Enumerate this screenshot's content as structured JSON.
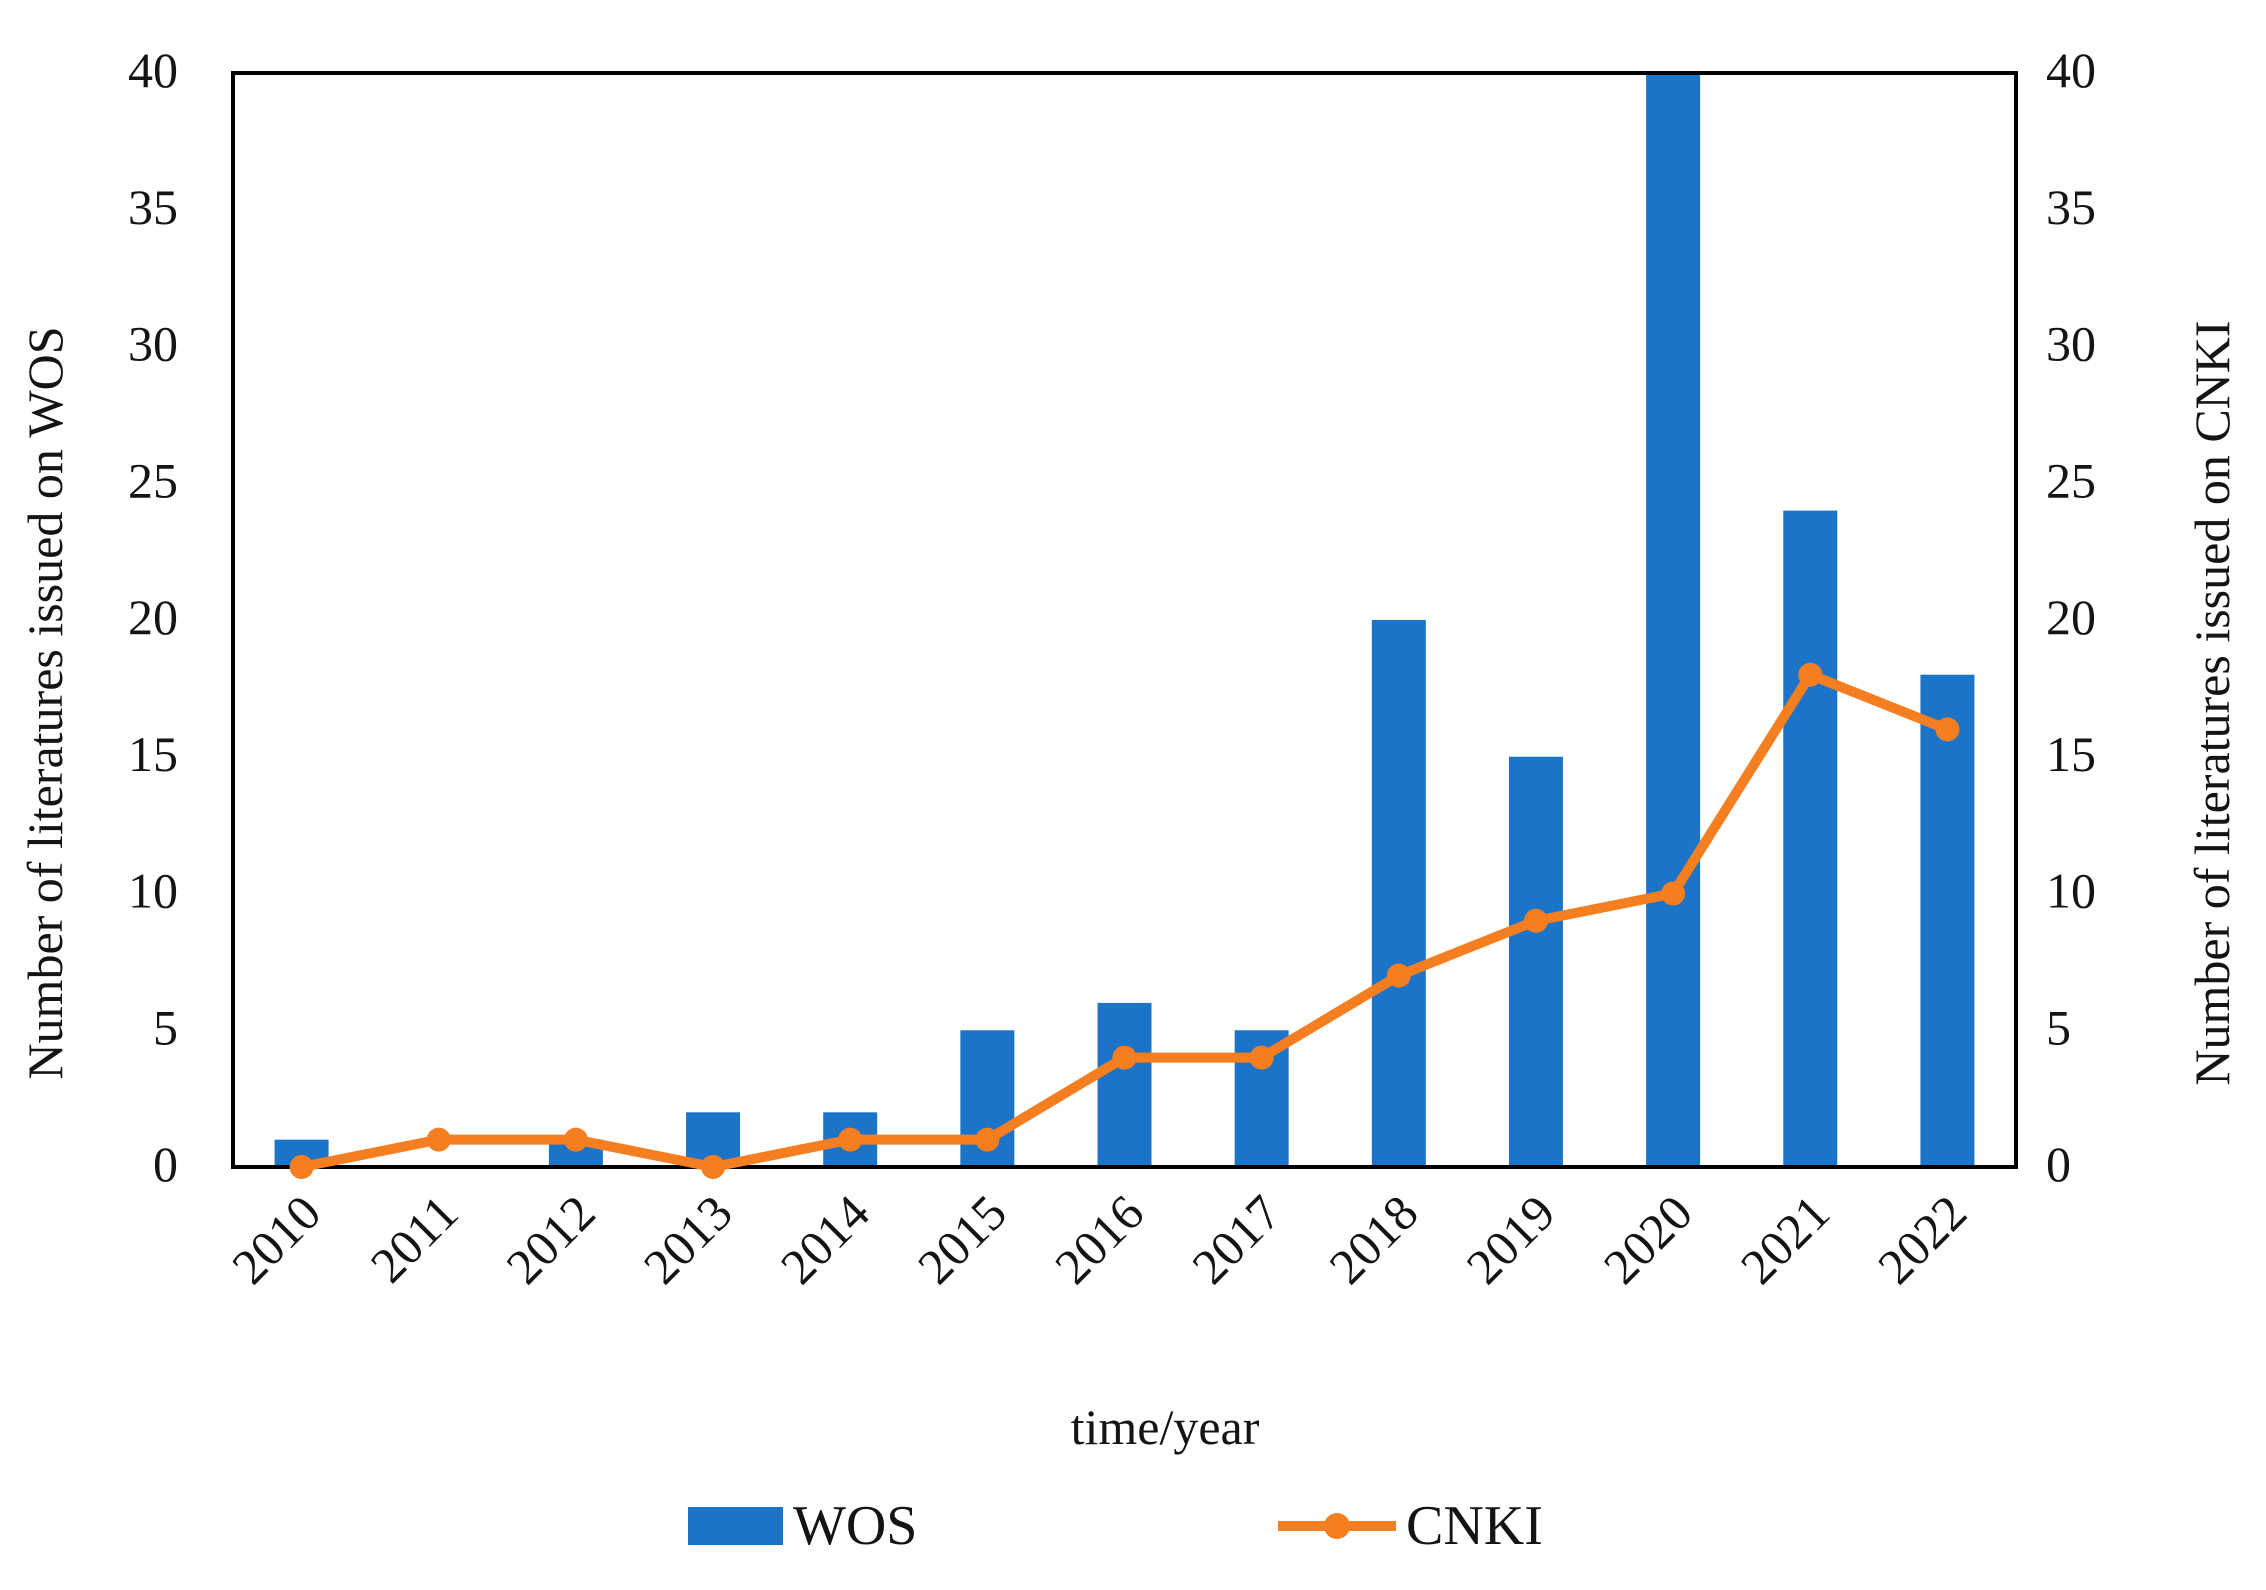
{
  "chart_data": {
    "type": "bar",
    "subtype": "dual-axis bar + line combo",
    "categories": [
      "2010",
      "2011",
      "2012",
      "2013",
      "2014",
      "2015",
      "2016",
      "2017",
      "2018",
      "2019",
      "2020",
      "2021",
      "2022"
    ],
    "series": [
      {
        "name": "WOS",
        "type": "bar",
        "axis": "left",
        "color": "#1c74c8",
        "values": [
          1,
          0,
          1,
          2,
          2,
          5,
          6,
          5,
          20,
          15,
          40,
          24,
          18
        ]
      },
      {
        "name": "CNKI",
        "type": "line",
        "axis": "right",
        "color": "#f57e20",
        "values": [
          0,
          1,
          1,
          0,
          1,
          1,
          4,
          4,
          7,
          9,
          10,
          18,
          16
        ]
      }
    ],
    "left_axis": {
      "label": "Number of literatures issued on WOS",
      "min": 0,
      "max": 40,
      "tick_step": 5
    },
    "right_axis": {
      "label": "Number of literatures issued on CNKI",
      "min": 0,
      "max": 40,
      "tick_step": 5
    },
    "x_axis": {
      "label": "time/year",
      "tick_rotation_deg": -45
    },
    "grid": false,
    "legend_position": "bottom",
    "plot_border_color": "#000000",
    "text_color": "#141414"
  }
}
